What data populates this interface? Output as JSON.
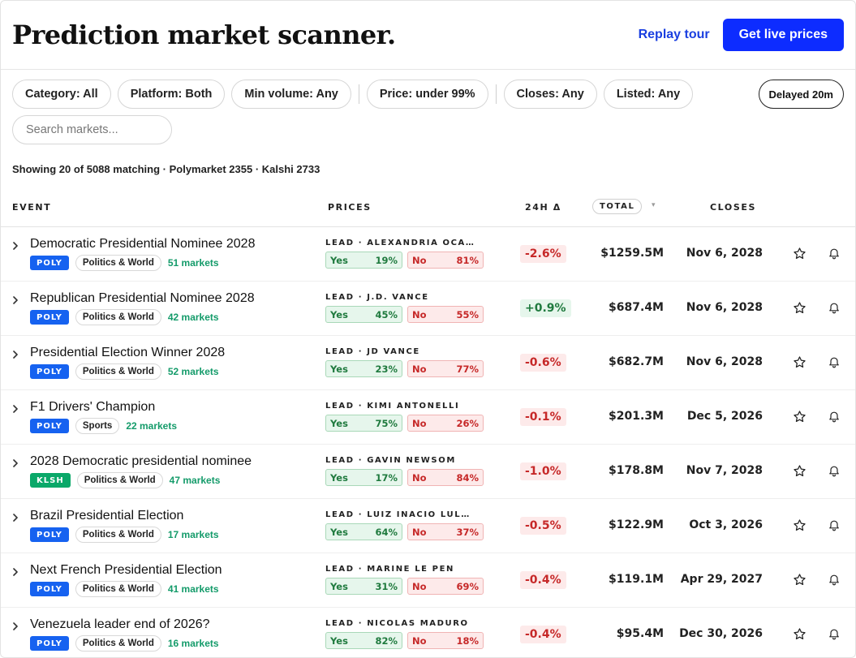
{
  "header": {
    "title": "Prediction market scanner.",
    "replay_label": "Replay tour",
    "live_label": "Get live prices"
  },
  "filters": {
    "category": "Category: All",
    "platform": "Platform: Both",
    "min_volume": "Min volume: Any",
    "price": "Price: under 99%",
    "closes": "Closes: Any",
    "listed": "Listed: Any",
    "delay": "Delayed 20m",
    "search_placeholder": "Search markets..."
  },
  "summary": "Showing 20 of 5088 matching · Polymarket 2355 · Kalshi 2733",
  "columns": {
    "event": "EVENT",
    "prices": "PRICES",
    "delta": "24H Δ",
    "total": "TOTAL",
    "closes": "CLOSES"
  },
  "colors": {
    "poly_badge": "#1662f0",
    "klsh_badge": "#0aa869",
    "accent": "#0d2cff"
  },
  "icons": {
    "expand": "chevron-right-icon",
    "favorite": "star-icon",
    "alert": "bell-icon",
    "sort": "sort-caret-icon"
  },
  "rows": [
    {
      "title": "Democratic Presidential Nominee 2028",
      "platform": "POLY",
      "category": "Politics & World",
      "markets": "51 markets",
      "lead": "LEAD · ALEXANDRIA OCASIO-CORTEZ",
      "yes_label": "Yes",
      "yes": "19%",
      "no_label": "No",
      "no": "81%",
      "delta": "-2.6%",
      "delta_sign": "neg",
      "total": "$1259.5M",
      "closes": "Nov 6, 2028"
    },
    {
      "title": "Republican Presidential Nominee 2028",
      "platform": "POLY",
      "category": "Politics & World",
      "markets": "42 markets",
      "lead": "LEAD · J.D. VANCE",
      "yes_label": "Yes",
      "yes": "45%",
      "no_label": "No",
      "no": "55%",
      "delta": "+0.9%",
      "delta_sign": "pos",
      "total": "$687.4M",
      "closes": "Nov 6, 2028"
    },
    {
      "title": "Presidential Election Winner 2028",
      "platform": "POLY",
      "category": "Politics & World",
      "markets": "52 markets",
      "lead": "LEAD · JD VANCE",
      "yes_label": "Yes",
      "yes": "23%",
      "no_label": "No",
      "no": "77%",
      "delta": "-0.6%",
      "delta_sign": "neg",
      "total": "$682.7M",
      "closes": "Nov 6, 2028"
    },
    {
      "title": "F1 Drivers' Champion",
      "platform": "POLY",
      "category": "Sports",
      "markets": "22 markets",
      "lead": "LEAD · KIMI ANTONELLI",
      "yes_label": "Yes",
      "yes": "75%",
      "no_label": "No",
      "no": "26%",
      "delta": "-0.1%",
      "delta_sign": "neg",
      "total": "$201.3M",
      "closes": "Dec 5, 2026"
    },
    {
      "title": "2028 Democratic presidential nominee",
      "platform": "KLSH",
      "category": "Politics & World",
      "markets": "47 markets",
      "lead": "LEAD · GAVIN NEWSOM",
      "yes_label": "Yes",
      "yes": "17%",
      "no_label": "No",
      "no": "84%",
      "delta": "-1.0%",
      "delta_sign": "neg",
      "total": "$178.8M",
      "closes": "Nov 7, 2028"
    },
    {
      "title": "Brazil Presidential Election",
      "platform": "POLY",
      "category": "Politics & World",
      "markets": "17 markets",
      "lead": "LEAD · LUIZ INÁCIO LULA DA SILVA",
      "yes_label": "Yes",
      "yes": "64%",
      "no_label": "No",
      "no": "37%",
      "delta": "-0.5%",
      "delta_sign": "neg",
      "total": "$122.9M",
      "closes": "Oct 3, 2026"
    },
    {
      "title": "Next French Presidential Election",
      "platform": "POLY",
      "category": "Politics & World",
      "markets": "41 markets",
      "lead": "LEAD · MARINE LE PEN",
      "yes_label": "Yes",
      "yes": "31%",
      "no_label": "No",
      "no": "69%",
      "delta": "-0.4%",
      "delta_sign": "neg",
      "total": "$119.1M",
      "closes": "Apr 29, 2027"
    },
    {
      "title": "Venezuela leader end of 2026?",
      "platform": "POLY",
      "category": "Politics & World",
      "markets": "16 markets",
      "lead": "LEAD · NICOLÁS MADURO",
      "yes_label": "Yes",
      "yes": "82%",
      "no_label": "No",
      "no": "18%",
      "delta": "-0.4%",
      "delta_sign": "neg",
      "total": "$95.4M",
      "closes": "Dec 30, 2026"
    }
  ]
}
